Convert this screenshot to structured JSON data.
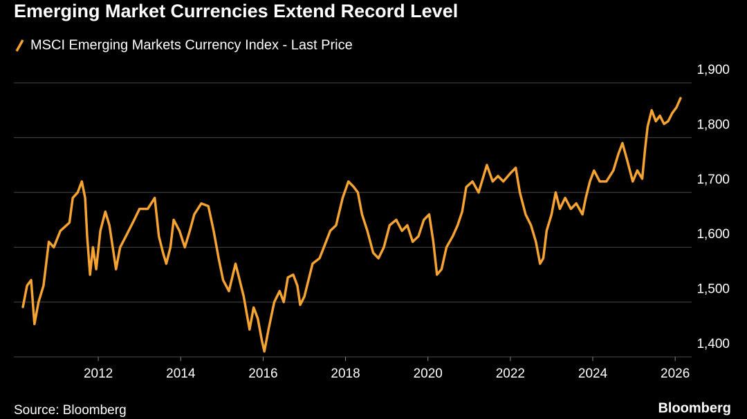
{
  "chart_data": {
    "type": "line",
    "title": "Emerging Market Currencies Extend Record Level",
    "source": "Source: Bloomberg",
    "brand": "Bloomberg",
    "series": [
      {
        "name": "MSCI Emerging Markets Currency Index - Last Price",
        "color": "#f5a332",
        "x": [
          2010.17,
          2010.27,
          2010.37,
          2010.45,
          2010.55,
          2010.67,
          2010.8,
          2010.92,
          2011.08,
          2011.3,
          2011.38,
          2011.5,
          2011.6,
          2011.68,
          2011.73,
          2011.8,
          2011.87,
          2011.95,
          2012.05,
          2012.17,
          2012.27,
          2012.35,
          2012.43,
          2012.53,
          2012.67,
          2012.87,
          2013.0,
          2013.2,
          2013.37,
          2013.47,
          2013.57,
          2013.65,
          2013.75,
          2013.83,
          2013.97,
          2014.1,
          2014.22,
          2014.33,
          2014.5,
          2014.67,
          2014.8,
          2014.92,
          2015.03,
          2015.17,
          2015.33,
          2015.43,
          2015.53,
          2015.67,
          2015.77,
          2015.87,
          2015.97,
          2016.03,
          2016.13,
          2016.27,
          2016.4,
          2016.5,
          2016.6,
          2016.73,
          2016.83,
          2016.9,
          2017.0,
          2017.1,
          2017.2,
          2017.37,
          2017.5,
          2017.63,
          2017.77,
          2017.93,
          2018.07,
          2018.2,
          2018.3,
          2018.4,
          2018.53,
          2018.67,
          2018.8,
          2018.93,
          2019.07,
          2019.23,
          2019.37,
          2019.5,
          2019.63,
          2019.77,
          2019.9,
          2020.03,
          2020.13,
          2020.22,
          2020.33,
          2020.45,
          2020.6,
          2020.72,
          2020.83,
          2020.93,
          2021.08,
          2021.23,
          2021.37,
          2021.43,
          2021.57,
          2021.7,
          2021.83,
          2022.0,
          2022.13,
          2022.23,
          2022.37,
          2022.5,
          2022.62,
          2022.72,
          2022.8,
          2022.88,
          2023.0,
          2023.1,
          2023.2,
          2023.33,
          2023.47,
          2023.6,
          2023.75,
          2023.83,
          2023.93,
          2024.03,
          2024.17,
          2024.33,
          2024.5,
          2024.62,
          2024.72,
          2024.83,
          2024.97,
          2025.08,
          2025.2,
          2025.27,
          2025.33,
          2025.43,
          2025.53,
          2025.63,
          2025.73,
          2025.83,
          2025.93,
          2026.03,
          2026.13
        ],
        "values": [
          1491,
          1530,
          1540,
          1460,
          1500,
          1530,
          1610,
          1600,
          1630,
          1645,
          1690,
          1700,
          1720,
          1690,
          1620,
          1550,
          1600,
          1560,
          1630,
          1665,
          1640,
          1600,
          1560,
          1600,
          1620,
          1650,
          1670,
          1670,
          1690,
          1620,
          1590,
          1570,
          1600,
          1650,
          1630,
          1600,
          1630,
          1660,
          1680,
          1675,
          1630,
          1580,
          1540,
          1520,
          1570,
          1540,
          1510,
          1450,
          1490,
          1470,
          1430,
          1410,
          1450,
          1500,
          1520,
          1500,
          1545,
          1550,
          1530,
          1495,
          1510,
          1540,
          1570,
          1580,
          1605,
          1630,
          1640,
          1690,
          1720,
          1710,
          1700,
          1660,
          1630,
          1590,
          1580,
          1600,
          1640,
          1650,
          1630,
          1640,
          1610,
          1620,
          1650,
          1660,
          1610,
          1550,
          1560,
          1600,
          1620,
          1640,
          1665,
          1710,
          1720,
          1700,
          1735,
          1750,
          1720,
          1730,
          1720,
          1735,
          1745,
          1700,
          1660,
          1640,
          1610,
          1570,
          1580,
          1630,
          1660,
          1700,
          1670,
          1690,
          1670,
          1680,
          1660,
          1690,
          1720,
          1740,
          1720,
          1720,
          1740,
          1770,
          1790,
          1760,
          1720,
          1740,
          1725,
          1780,
          1820,
          1850,
          1830,
          1840,
          1825,
          1830,
          1845,
          1855,
          1872
        ]
      }
    ],
    "xlim": [
      2009.95,
      2026.4
    ],
    "xticks": [
      2012,
      2014,
      2016,
      2018,
      2020,
      2022,
      2024,
      2026
    ],
    "ylim": [
      1400,
      1900
    ],
    "yticks": [
      {
        "value": 1400,
        "label": "1,400"
      },
      {
        "value": 1500,
        "label": "1,500"
      },
      {
        "value": 1600,
        "label": "1,600"
      },
      {
        "value": 1700,
        "label": "1,700"
      },
      {
        "value": 1800,
        "label": "1,800"
      },
      {
        "value": 1900,
        "label": "1,900"
      }
    ],
    "grid": true
  }
}
